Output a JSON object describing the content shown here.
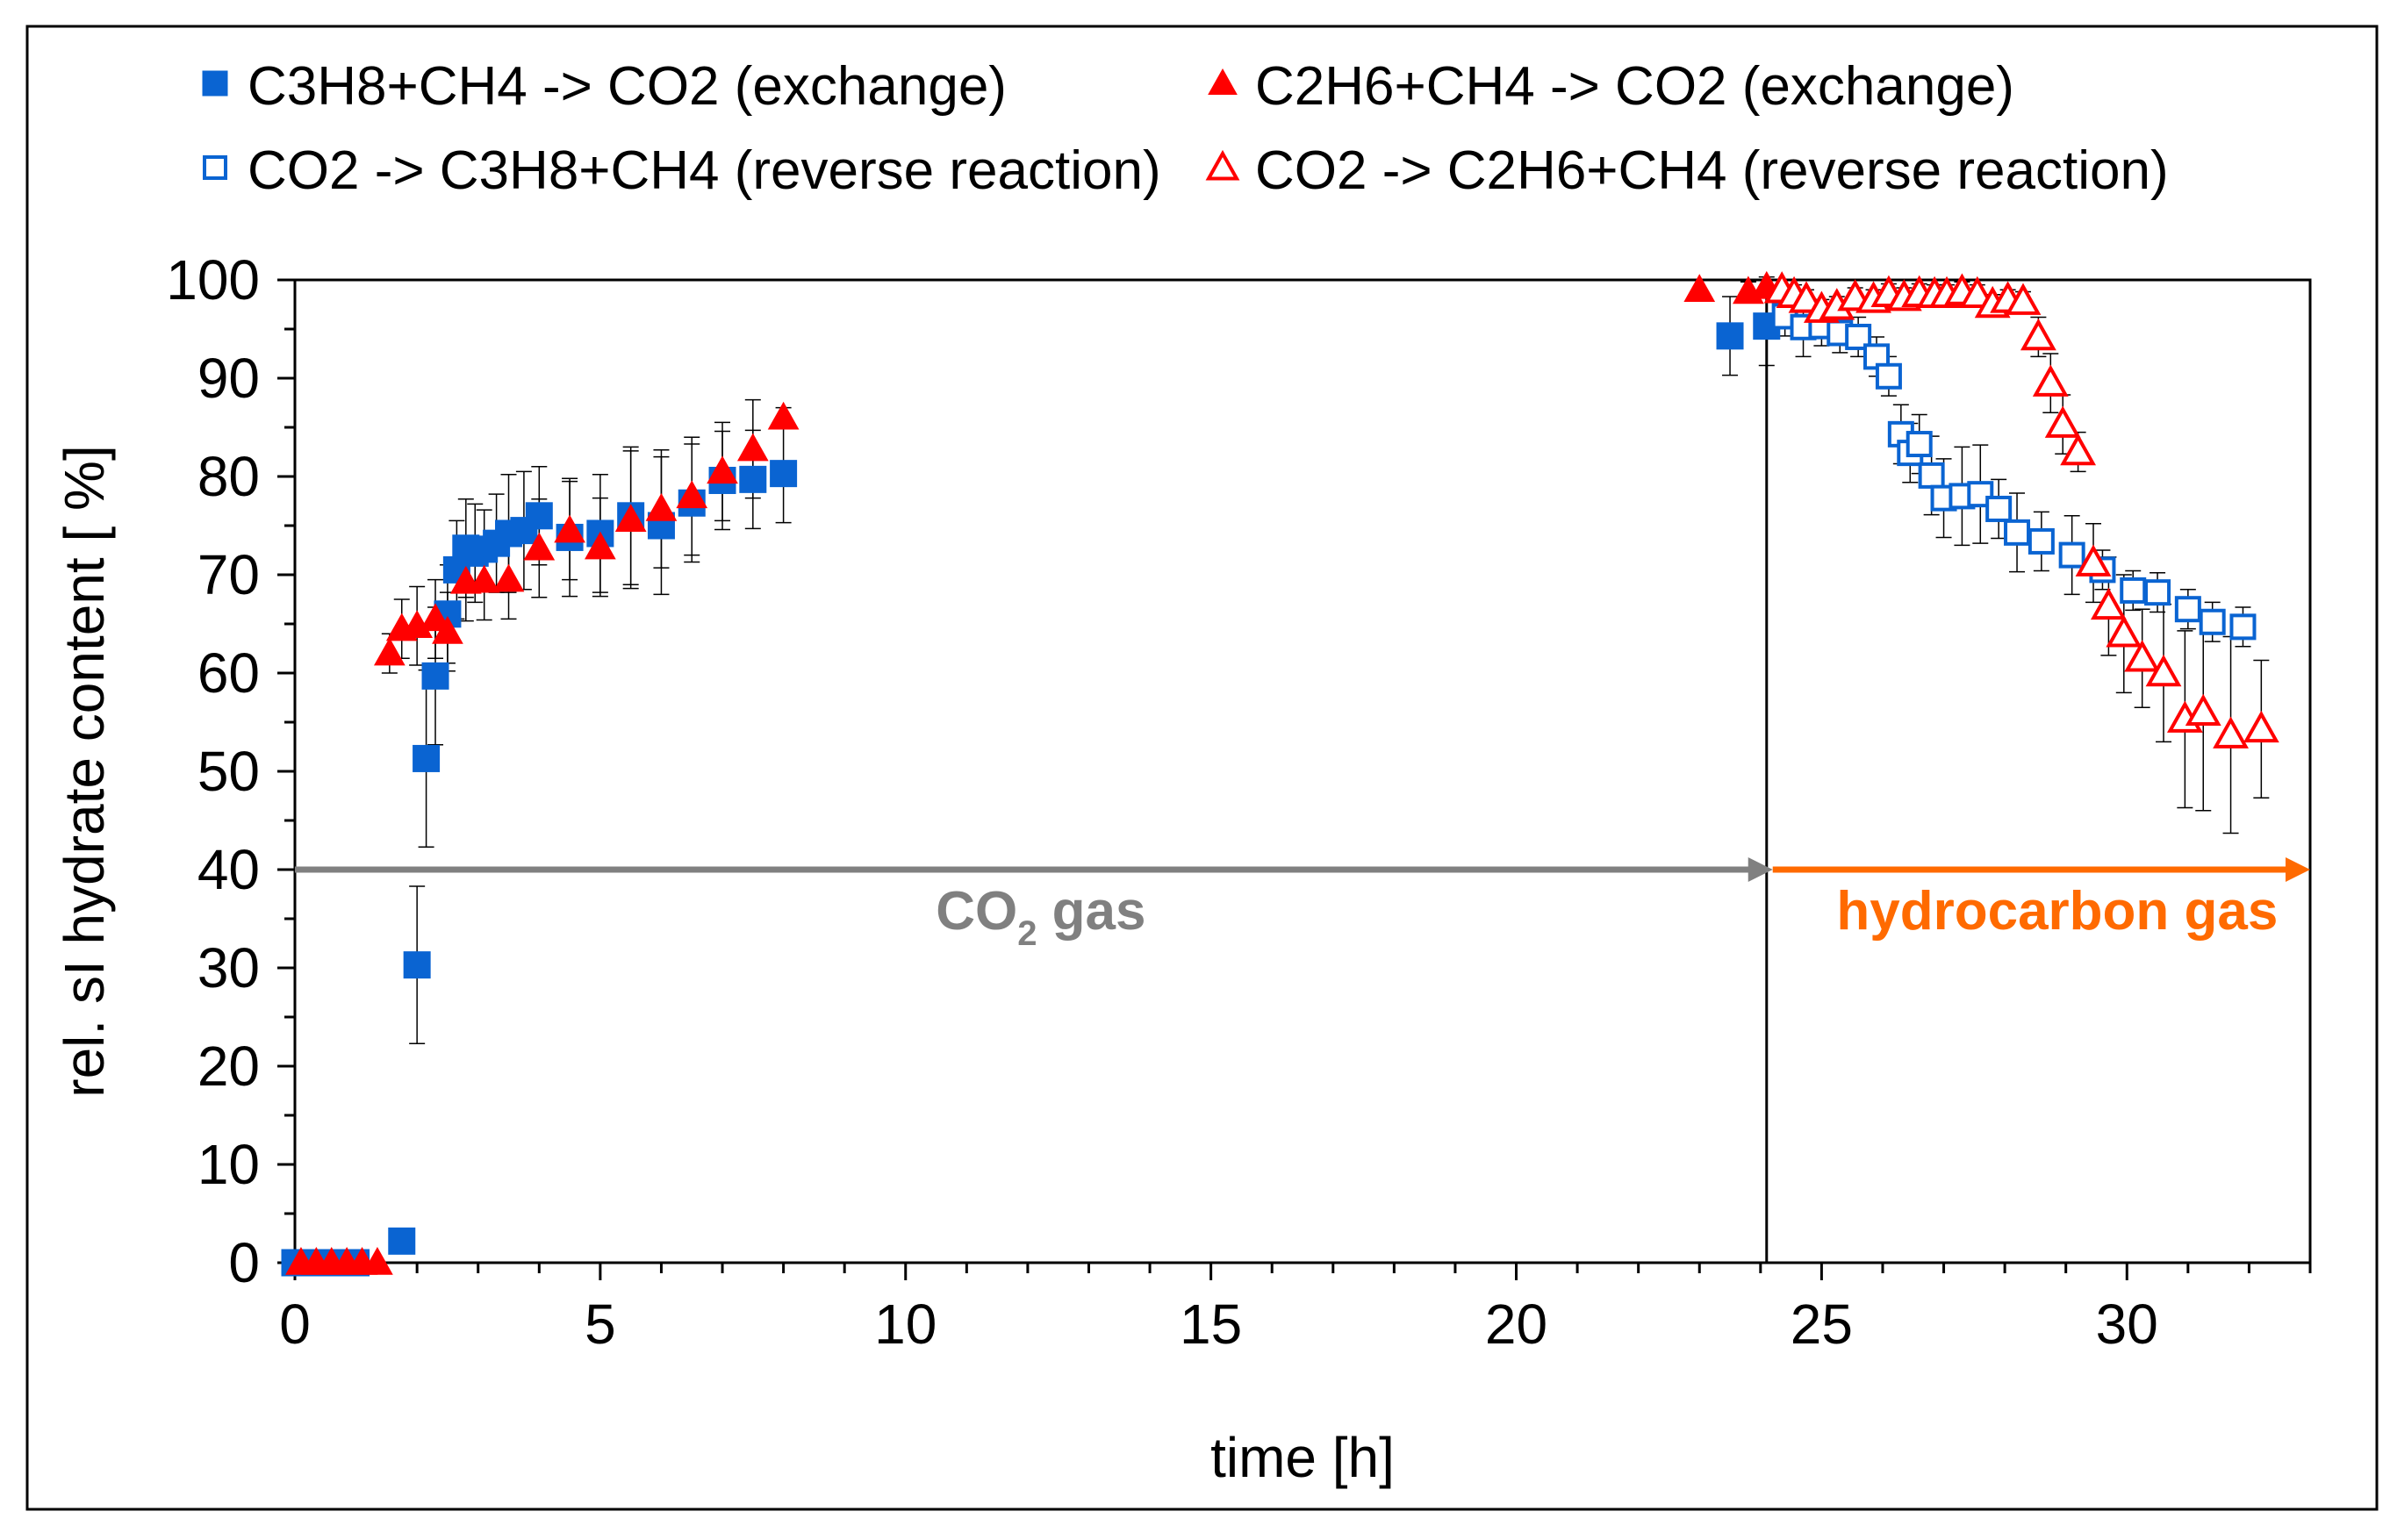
{
  "chart_data": {
    "type": "scatter",
    "xlabel": "time [h]",
    "ylabel": "rel. sI hydrate content [ %]",
    "xlim": [
      0,
      33
    ],
    "ylim": [
      0,
      100
    ],
    "xticks": [
      0,
      5,
      10,
      15,
      20,
      25,
      30
    ],
    "yticks": [
      0,
      10,
      20,
      30,
      40,
      50,
      60,
      70,
      80,
      90,
      100
    ],
    "grid": false,
    "legend_position": "top",
    "colors": {
      "blue": "#0a64d2",
      "red": "#ff0000",
      "gray": "#808080",
      "orange": "#ff6a00",
      "axis": "#000000"
    },
    "annotations": [
      {
        "text_main": "CO",
        "text_sub": "2",
        "text_tail": " gas",
        "color": "gray",
        "from_x": 0,
        "to_x": 24.2,
        "y": 40
      },
      {
        "text": "hydrocarbon gas",
        "color": "orange",
        "from_x": 24.2,
        "to_x": 33,
        "y": 40
      }
    ],
    "vertical_line_x": 24.1,
    "series": [
      {
        "name": "C3H8+CH4 -> CO2 (exchange)",
        "marker": "square",
        "filled": true,
        "color": "blue",
        "x": [
          0,
          0.25,
          0.5,
          0.75,
          1.0,
          1.75,
          2.0,
          2.15,
          2.3,
          2.5,
          2.65,
          2.8,
          2.95,
          3.1,
          3.3,
          3.5,
          3.75,
          4.0,
          4.5,
          5.0,
          5.5,
          6.0,
          6.5,
          7.0,
          7.5,
          8.0,
          23.5,
          24.1
        ],
        "y": [
          0,
          0,
          0,
          0,
          0,
          2.2,
          30.3,
          51.3,
          59.7,
          66.0,
          70.5,
          72.7,
          72.2,
          72.6,
          73.2,
          74.2,
          74.5,
          76.0,
          73.8,
          74.2,
          76.0,
          75.0,
          77.3,
          79.6,
          79.7,
          80.3,
          94.3,
          95.3
        ],
        "err": [
          0,
          0,
          0,
          0,
          0,
          0,
          8,
          9,
          7,
          5,
          5,
          5,
          5,
          4,
          5,
          6,
          6,
          5,
          6,
          6,
          7,
          7,
          6,
          5,
          5,
          5,
          4,
          4
        ]
      },
      {
        "name": "C2H6+CH4 -> CO2 (exchange)",
        "marker": "triangle",
        "filled": true,
        "color": "red",
        "x": [
          0.1,
          0.35,
          0.6,
          0.85,
          1.1,
          1.35,
          1.55,
          1.75,
          2.0,
          2.3,
          2.5,
          2.8,
          3.1,
          3.5,
          4.0,
          4.5,
          5.0,
          5.5,
          6.0,
          6.5,
          7.0,
          7.5,
          8.0,
          23.0,
          23.8,
          24.1
        ],
        "y": [
          0,
          0,
          0,
          0,
          0,
          0,
          62.0,
          64.5,
          64.8,
          65.5,
          64.2,
          69.3,
          69.4,
          69.5,
          72.7,
          74.5,
          72.8,
          75.6,
          76.7,
          78.0,
          80.5,
          82.8,
          86.0,
          99.0,
          98.8,
          99.3
        ],
        "err": [
          0,
          0,
          0,
          0,
          0,
          0,
          2,
          3,
          4,
          4,
          4,
          4,
          4,
          4,
          5,
          5,
          5,
          7,
          6,
          6,
          5,
          5,
          1,
          1,
          1,
          1
        ]
      },
      {
        "name": "CO2 -> C3H8+CH4 (reverse reaction)",
        "marker": "square",
        "filled": false,
        "color": "blue",
        "x": [
          24.4,
          24.7,
          25.0,
          25.3,
          25.6,
          25.9,
          26.1,
          26.3,
          26.45,
          26.6,
          26.8,
          27.0,
          27.3,
          27.6,
          27.9,
          28.2,
          28.6,
          29.1,
          29.6,
          30.1,
          30.5,
          31.0,
          31.4,
          31.9
        ],
        "y": [
          96.3,
          95.2,
          95.3,
          94.6,
          94.2,
          92.2,
          90.2,
          84.3,
          82.4,
          83.3,
          80.1,
          77.8,
          78.0,
          78.2,
          76.7,
          74.3,
          73.4,
          72.0,
          70.5,
          68.4,
          68.2,
          66.5,
          65.2,
          64.7
        ],
        "err": [
          2,
          3,
          2,
          2,
          2,
          2,
          2,
          3,
          3,
          3,
          4,
          4,
          5,
          5,
          3,
          4,
          3,
          4,
          2,
          2,
          2,
          2,
          2,
          2
        ]
      },
      {
        "name": "CO2 -> C2H6+CH4 (reverse reaction)",
        "marker": "triangle",
        "filled": false,
        "color": "red",
        "x": [
          24.35,
          24.55,
          24.75,
          25.0,
          25.25,
          25.55,
          25.85,
          26.1,
          26.35,
          26.6,
          26.85,
          27.05,
          27.3,
          27.55,
          27.8,
          28.05,
          28.3,
          28.55,
          28.75,
          28.95,
          29.2,
          29.45,
          29.7,
          29.95,
          30.25,
          30.6,
          30.95,
          31.25,
          31.7,
          32.2
        ],
        "y": [
          99.0,
          98.5,
          98.0,
          97.0,
          97.3,
          98.2,
          98.0,
          98.6,
          98.2,
          98.6,
          98.5,
          98.5,
          98.8,
          98.5,
          97.5,
          98.0,
          97.8,
          94.2,
          89.5,
          85.3,
          82.5,
          71.2,
          66.8,
          64.0,
          61.5,
          60.0,
          55.3,
          56.0,
          53.7,
          54.3
        ],
        "err": [
          1,
          1,
          1,
          1,
          1,
          1,
          1,
          1,
          1,
          1,
          1,
          1,
          1,
          1,
          1,
          1,
          1,
          2,
          3,
          3,
          2,
          4,
          5,
          6,
          5,
          7,
          9,
          10,
          10,
          7
        ]
      }
    ]
  }
}
